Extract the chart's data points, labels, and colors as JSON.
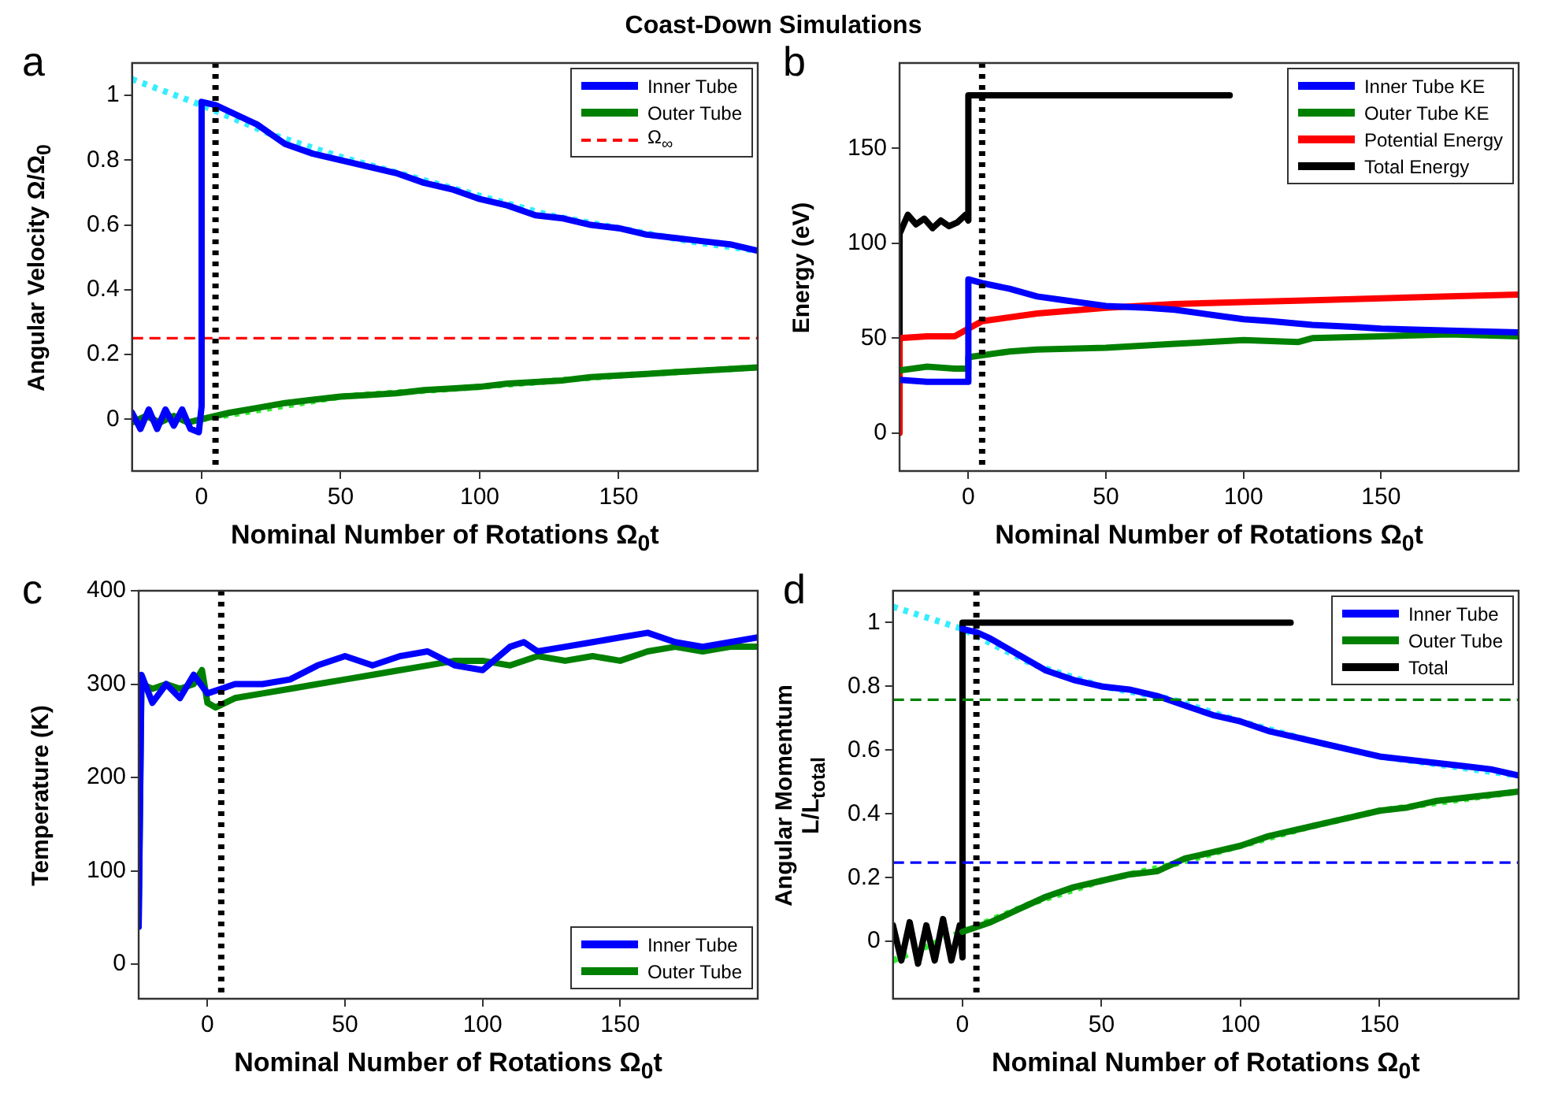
{
  "chart_data": [
    {
      "type": "line",
      "title": "Coast-Down Simulations",
      "annotations": [
        "a"
      ],
      "xlabel": "Nominal Number of Rotations Ω$_{0}$t",
      "ylabel": "Angular Velocity Ω/Ω$_{0}$",
      "xlim": [
        -25,
        200
      ],
      "xticks": [
        0,
        50,
        100,
        150
      ],
      "ylim": [
        -0.16,
        1.1
      ],
      "yticks": [
        0,
        0.2,
        0.4,
        0.6,
        0.8,
        1
      ],
      "grid": false,
      "legend": "top right",
      "marker": "none",
      "ref_lines": [
        {
          "axis": "x",
          "value": 5,
          "color": "#000000",
          "line_style": "dotted"
        }
      ],
      "series": [
        {
          "name": "Inner Tube",
          "color": "#0000ff",
          "x": [
            -25,
            -22,
            -19,
            -16,
            -13,
            -10,
            -7,
            -4,
            -1,
            0,
            0,
            5,
            10,
            15,
            20,
            25,
            30,
            40,
            50,
            60,
            70,
            80,
            90,
            100,
            110,
            120,
            130,
            140,
            150,
            160,
            170,
            180,
            190,
            200
          ],
          "values": [
            0.02,
            -0.03,
            0.03,
            -0.03,
            0.03,
            -0.02,
            0.03,
            -0.03,
            -0.04,
            0.04,
            0.98,
            0.97,
            0.95,
            0.93,
            0.91,
            0.88,
            0.85,
            0.82,
            0.8,
            0.78,
            0.76,
            0.73,
            0.71,
            0.68,
            0.66,
            0.63,
            0.62,
            0.6,
            0.59,
            0.57,
            0.56,
            0.55,
            0.54,
            0.52
          ]
        },
        {
          "name": "Outer Tube",
          "color": "#008000",
          "x": [
            -25,
            -20,
            -15,
            -10,
            -5,
            0,
            10,
            20,
            30,
            40,
            50,
            60,
            70,
            80,
            90,
            100,
            110,
            120,
            130,
            140,
            150,
            160,
            170,
            180,
            190,
            200
          ],
          "values": [
            -0.01,
            0.01,
            -0.01,
            0.01,
            -0.01,
            0,
            0.02,
            0.035,
            0.05,
            0.06,
            0.07,
            0.075,
            0.08,
            0.09,
            0.095,
            0.1,
            0.11,
            0.115,
            0.12,
            0.13,
            0.135,
            0.14,
            0.145,
            0.15,
            0.155,
            0.16
          ]
        },
        {
          "name": "Ω$_{∞}$",
          "color": "#ff0000",
          "line_style": "dashed",
          "x": [
            -25,
            200
          ],
          "values": [
            0.25,
            0.25
          ]
        },
        {
          "color": "#33eeff",
          "line_style": "dotted",
          "x": [
            -25,
            0,
            25,
            50,
            75,
            100,
            125,
            150,
            175,
            200
          ],
          "values": [
            1.05,
            0.97,
            0.88,
            0.81,
            0.75,
            0.69,
            0.63,
            0.59,
            0.55,
            0.52
          ]
        },
        {
          "color": "#33ee33",
          "line_style": "dotted",
          "x": [
            0,
            50,
            100,
            150,
            200
          ],
          "values": [
            0,
            0.07,
            0.1,
            0.135,
            0.16
          ]
        }
      ]
    },
    {
      "type": "line",
      "annotations": [
        "b"
      ],
      "xlabel": "Nominal Number of Rotations Ω$_{0}$t",
      "ylabel": "Energy (eV)",
      "xlim": [
        -25,
        200
      ],
      "xticks": [
        0,
        50,
        100,
        150
      ],
      "ylim": [
        -20,
        195
      ],
      "yticks": [
        0,
        50,
        100,
        150
      ],
      "grid": false,
      "legend": "top right",
      "marker": "none",
      "ref_lines": [
        {
          "axis": "x",
          "value": 5,
          "color": "#000000",
          "line_style": "dotted"
        }
      ],
      "series": [
        {
          "name": "Inner Tube KE",
          "color": "#0000ff",
          "x": [
            -25,
            -15,
            -5,
            0,
            0,
            5,
            15,
            25,
            35,
            50,
            65,
            75,
            90,
            100,
            110,
            125,
            140,
            150,
            175,
            200
          ],
          "values": [
            28,
            27,
            27,
            27,
            81,
            79,
            76,
            72,
            70,
            67,
            66,
            65,
            62,
            60,
            59,
            57,
            56,
            55,
            54,
            53
          ]
        },
        {
          "name": "Outer Tube KE",
          "color": "#008000",
          "x": [
            -25,
            -15,
            -5,
            0,
            0,
            15,
            25,
            50,
            75,
            100,
            120,
            125,
            150,
            175,
            200
          ],
          "values": [
            33,
            35,
            34,
            34,
            40,
            43,
            44,
            45,
            47,
            49,
            48,
            50,
            51,
            52,
            51
          ]
        },
        {
          "name": "Potential Energy",
          "color": "#ff0000",
          "x": [
            -25,
            -25,
            -15,
            -5,
            0,
            5,
            25,
            50,
            75,
            100,
            125,
            150,
            175,
            200
          ],
          "values": [
            0,
            50,
            51,
            51,
            55,
            59,
            63,
            66,
            68,
            69,
            70,
            71,
            72,
            73
          ]
        },
        {
          "name": "Total Energy",
          "color": "#000000",
          "x": [
            -25,
            -25,
            -22,
            -19,
            -16,
            -13,
            -10,
            -7,
            -4,
            -1,
            0,
            0,
            95
          ],
          "values": [
            10,
            105,
            115,
            110,
            113,
            108,
            112,
            109,
            111,
            115,
            112,
            178,
            178
          ]
        }
      ]
    },
    {
      "type": "line",
      "annotations": [
        "c"
      ],
      "xlabel": "Nominal Number of Rotations Ω$_{0}$t",
      "ylabel": "Temperature (K)",
      "xlim": [
        -25,
        200
      ],
      "xticks": [
        0,
        50,
        100,
        150
      ],
      "ylim": [
        -37,
        400
      ],
      "yticks": [
        0,
        100,
        200,
        300,
        400
      ],
      "grid": false,
      "legend": "bottom right",
      "marker": "none",
      "ref_lines": [
        {
          "axis": "x",
          "value": 5,
          "color": "#000000",
          "line_style": "dotted"
        }
      ],
      "series": [
        {
          "name": "Inner Tube",
          "color": "#0000ff",
          "x": [
            -25,
            -24,
            -20,
            -15,
            -10,
            -5,
            0,
            5,
            10,
            20,
            30,
            40,
            50,
            60,
            70,
            80,
            90,
            100,
            110,
            115,
            120,
            130,
            140,
            150,
            160,
            170,
            180,
            190,
            200
          ],
          "values": [
            40,
            310,
            280,
            300,
            285,
            310,
            290,
            295,
            300,
            300,
            305,
            320,
            330,
            320,
            330,
            335,
            320,
            315,
            340,
            345,
            335,
            340,
            345,
            350,
            355,
            345,
            340,
            345,
            350
          ]
        },
        {
          "name": "Outer Tube",
          "color": "#008000",
          "x": [
            -25,
            -24,
            -20,
            -15,
            -10,
            -5,
            -2,
            0,
            3,
            10,
            20,
            30,
            40,
            50,
            60,
            70,
            80,
            90,
            100,
            110,
            120,
            130,
            140,
            150,
            160,
            170,
            180,
            190,
            200
          ],
          "values": [
            50,
            300,
            295,
            300,
            295,
            300,
            315,
            280,
            275,
            285,
            290,
            295,
            300,
            305,
            310,
            315,
            320,
            325,
            325,
            320,
            330,
            325,
            330,
            325,
            335,
            340,
            335,
            340,
            340
          ]
        }
      ]
    },
    {
      "type": "line",
      "annotations": [
        "d"
      ],
      "xlabel": "Nominal Number of Rotations Ω$_{0}$t",
      "ylabel": "Angular Momentum\nL/L$_{total}$",
      "xlim": [
        -25,
        200
      ],
      "xticks": [
        0,
        50,
        100,
        150
      ],
      "ylim": [
        -0.18,
        1.1
      ],
      "yticks": [
        0,
        0.2,
        0.4,
        0.6,
        0.8,
        1
      ],
      "grid": false,
      "legend": "top right",
      "marker": "none",
      "ref_lines": [
        {
          "axis": "x",
          "value": 5,
          "color": "#000000",
          "line_style": "dotted"
        },
        {
          "axis": "y",
          "value": 0.758,
          "color": "#008000",
          "line_style": "dashed"
        },
        {
          "axis": "y",
          "value": 0.247,
          "color": "#0000ff",
          "line_style": "dashed"
        }
      ],
      "series": [
        {
          "name": "Inner Tube",
          "color": "#0000ff",
          "x": [
            0,
            5,
            10,
            20,
            30,
            40,
            50,
            60,
            70,
            80,
            90,
            100,
            110,
            120,
            130,
            140,
            150,
            160,
            170,
            180,
            190,
            200
          ],
          "values": [
            0.98,
            0.97,
            0.95,
            0.9,
            0.85,
            0.82,
            0.8,
            0.79,
            0.77,
            0.74,
            0.71,
            0.69,
            0.66,
            0.64,
            0.62,
            0.6,
            0.58,
            0.57,
            0.56,
            0.55,
            0.54,
            0.52
          ]
        },
        {
          "name": "Outer Tube",
          "color": "#008000",
          "x": [
            0,
            10,
            20,
            30,
            40,
            50,
            60,
            70,
            80,
            90,
            100,
            110,
            120,
            130,
            140,
            150,
            160,
            170,
            180,
            190,
            200
          ],
          "values": [
            0.03,
            0.06,
            0.1,
            0.14,
            0.17,
            0.19,
            0.21,
            0.22,
            0.26,
            0.28,
            0.3,
            0.33,
            0.35,
            0.37,
            0.39,
            0.41,
            0.42,
            0.44,
            0.45,
            0.46,
            0.47
          ]
        },
        {
          "name": "Total",
          "color": "#000000",
          "x": [
            -25,
            -22,
            -19,
            -16,
            -13,
            -10,
            -7,
            -4,
            -1,
            0,
            0,
            118
          ],
          "values": [
            0.05,
            -0.06,
            0.06,
            -0.07,
            0.05,
            -0.06,
            0.07,
            -0.06,
            0.05,
            -0.05,
            1,
            1
          ]
        },
        {
          "color": "#33eeff",
          "line_style": "dotted",
          "x": [
            -25,
            0,
            25,
            50,
            75,
            100,
            125,
            150,
            175,
            200
          ],
          "values": [
            1.05,
            0.98,
            0.87,
            0.8,
            0.76,
            0.69,
            0.63,
            0.58,
            0.55,
            0.52
          ]
        },
        {
          "color": "#33ee33",
          "line_style": "dotted",
          "x": [
            -25,
            0,
            25,
            50,
            75,
            100,
            125,
            150,
            175,
            200
          ],
          "values": [
            -0.06,
            0.03,
            0.12,
            0.19,
            0.24,
            0.3,
            0.36,
            0.41,
            0.44,
            0.47
          ]
        }
      ]
    }
  ]
}
